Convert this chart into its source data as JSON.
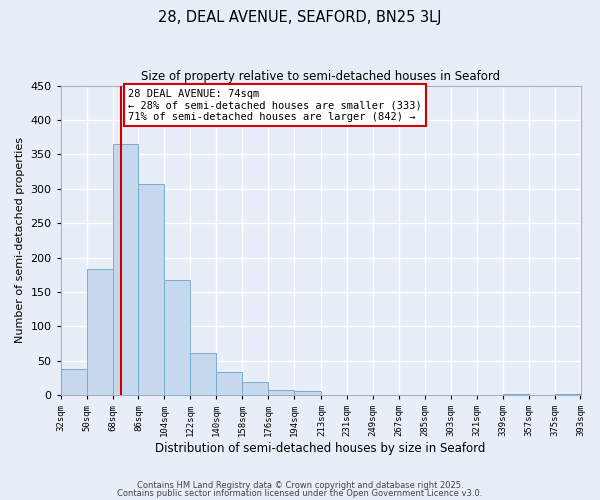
{
  "title": "28, DEAL AVENUE, SEAFORD, BN25 3LJ",
  "subtitle": "Size of property relative to semi-detached houses in Seaford",
  "xlabel": "Distribution of semi-detached houses by size in Seaford",
  "ylabel": "Number of semi-detached properties",
  "bar_color": "#c5d8ee",
  "bar_edge_color": "#7aacce",
  "background_color": "#e8eef8",
  "grid_color": "#ffffff",
  "vline_color": "#cc0000",
  "vline_x": 74,
  "annotation_title": "28 DEAL AVENUE: 74sqm",
  "annotation_line1": "← 28% of semi-detached houses are smaller (333)",
  "annotation_line2": "71% of semi-detached houses are larger (842) →",
  "bins": [
    32,
    50,
    68,
    86,
    104,
    122,
    140,
    158,
    176,
    194,
    213,
    231,
    249,
    267,
    285,
    303,
    321,
    339,
    357,
    375,
    393
  ],
  "counts": [
    38,
    183,
    365,
    307,
    168,
    61,
    34,
    19,
    8,
    6,
    0,
    0,
    0,
    0,
    0,
    0,
    0,
    2,
    0,
    2
  ],
  "ylim": [
    0,
    450
  ],
  "yticks": [
    0,
    50,
    100,
    150,
    200,
    250,
    300,
    350,
    400,
    450
  ],
  "footer1": "Contains HM Land Registry data © Crown copyright and database right 2025.",
  "footer2": "Contains public sector information licensed under the Open Government Licence v3.0."
}
